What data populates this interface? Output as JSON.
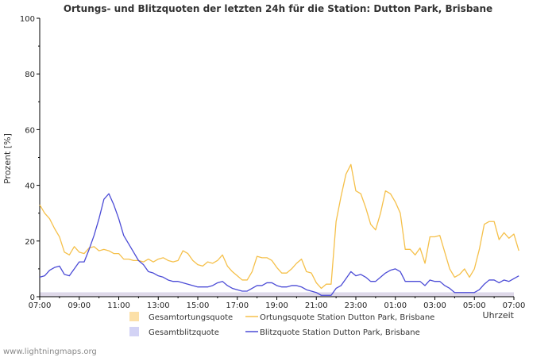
{
  "chart_data": {
    "type": "line",
    "title": "Ortungs- und Blitzquoten der letzten 24h für die Station: Dutton Park, Brisbane",
    "xlabel": "Uhrzeit",
    "ylabel": "Prozent   [%]",
    "ylim": [
      0,
      100
    ],
    "y_ticks": [
      0,
      20,
      40,
      60,
      80,
      100
    ],
    "x_ticks": [
      "07:00",
      "09:00",
      "11:00",
      "13:00",
      "15:00",
      "17:00",
      "19:00",
      "21:00",
      "23:00",
      "01:00",
      "03:00",
      "05:00",
      "07:00"
    ],
    "x_range_hours": [
      0,
      24
    ],
    "step_hours": 0.25,
    "series": [
      {
        "name": "Gesamtortungsquote",
        "kind": "area",
        "color": "#fce0a8",
        "values": [
          1.5,
          1.5,
          1.5,
          1.5,
          1.5,
          1.5,
          1.5,
          1.5,
          1.5,
          1.5,
          1.5,
          1.5,
          1.5,
          1.5,
          1.5,
          1.5,
          1.5,
          1.5,
          1.5,
          1.5,
          1.5,
          1.5,
          1.5,
          1.5,
          1.5,
          1.5,
          1.5,
          1.5,
          1.5,
          1.5,
          1.5,
          1.5,
          1.5,
          1.5,
          1.5,
          1.5,
          1.5,
          1.5,
          1.5,
          1.5,
          1.5,
          1.5,
          1.5,
          1.5,
          1.5,
          1.5,
          1.5,
          1.5,
          1.5,
          1.5,
          1.5,
          1.5,
          1.5,
          1.5,
          1.5,
          1.5,
          1.5,
          1.5,
          1.5,
          1.5,
          1.5,
          1.5,
          1.5,
          1.5,
          1.5,
          1.5,
          1.5,
          1.5,
          1.5,
          1.5,
          1.5,
          1.5,
          1.5,
          1.5,
          1.5,
          1.5,
          1.5,
          1.5,
          1.5,
          1.5,
          1.5,
          1.5,
          1.5,
          1.5,
          1.5,
          1.5,
          1.5,
          1.5,
          1.5,
          1.5,
          1.5,
          1.5,
          1.5,
          1.5,
          1.5,
          1.5,
          1.5
        ]
      },
      {
        "name": "Gesamtblitzquote",
        "kind": "area",
        "color": "#d3d3f5",
        "values": [
          1.6,
          1.6,
          1.6,
          1.6,
          1.6,
          1.6,
          1.6,
          1.6,
          1.6,
          1.6,
          1.6,
          1.6,
          1.6,
          1.6,
          1.6,
          1.6,
          1.6,
          1.6,
          1.6,
          1.6,
          1.6,
          1.6,
          1.6,
          1.6,
          1.6,
          1.6,
          1.6,
          1.6,
          1.6,
          1.6,
          1.6,
          1.6,
          1.6,
          1.6,
          1.6,
          1.6,
          1.6,
          1.6,
          1.6,
          1.6,
          1.6,
          1.6,
          1.6,
          1.6,
          1.6,
          1.6,
          1.6,
          1.6,
          1.6,
          1.6,
          1.6,
          1.6,
          1.6,
          1.6,
          1.6,
          1.6,
          1.6,
          1.6,
          1.6,
          1.6,
          1.6,
          1.6,
          1.6,
          1.6,
          1.6,
          1.6,
          1.6,
          1.6,
          1.6,
          1.6,
          1.6,
          1.6,
          1.6,
          1.6,
          1.6,
          1.6,
          1.6,
          1.6,
          1.6,
          1.6,
          1.6,
          1.6,
          1.6,
          1.6,
          1.6,
          1.6,
          1.6,
          1.6,
          1.6,
          1.6,
          1.6,
          1.6,
          1.6,
          1.6,
          1.6,
          1.6,
          1.6
        ]
      },
      {
        "name": "Ortungsquote Station Dutton Park, Brisbane",
        "kind": "line",
        "color": "#f5c04a",
        "values": [
          33,
          30,
          28,
          24.5,
          21.5,
          16,
          15,
          18,
          16,
          15.5,
          17.5,
          18,
          16.5,
          17,
          16.5,
          15.5,
          15.5,
          13.5,
          13.5,
          13,
          13,
          12.5,
          13.5,
          12.5,
          13.5,
          14,
          13,
          12.5,
          13,
          16.5,
          15.5,
          13,
          11.5,
          11,
          12.5,
          12,
          13,
          15,
          11,
          9,
          7.5,
          6,
          6,
          9,
          14.5,
          14,
          14,
          13,
          10.5,
          8.5,
          8.5,
          10,
          12,
          13.5,
          9,
          8.5,
          5,
          3,
          4.5,
          4.5,
          27,
          36,
          44,
          47.5,
          38,
          37,
          32,
          26,
          24,
          30,
          38,
          37,
          34,
          30,
          17,
          17,
          15,
          17.5,
          12,
          21.5,
          21.5,
          22,
          16,
          10,
          7,
          8,
          10,
          7,
          10,
          17,
          26,
          27,
          27,
          20.5,
          23,
          21,
          22.5,
          16.5
        ]
      },
      {
        "name": "Blitzquote Station Dutton Park, Brisbane",
        "kind": "line",
        "color": "#4b4bd6",
        "values": [
          7,
          7.5,
          9.5,
          10.5,
          11,
          8,
          7.5,
          10,
          12.5,
          12.5,
          17,
          22,
          28,
          35,
          37,
          33,
          28,
          22,
          19,
          16,
          13,
          11.5,
          9,
          8.5,
          7.5,
          7,
          6,
          5.5,
          5.5,
          5,
          4.5,
          4,
          3.5,
          3.5,
          3.5,
          4,
          5,
          5.5,
          4,
          3,
          2.5,
          2,
          2,
          3,
          4,
          4,
          5,
          5,
          4,
          3.5,
          3.5,
          4,
          4,
          3.5,
          2.5,
          2,
          1.5,
          0.5,
          0.5,
          0.5,
          3,
          4,
          6.5,
          9,
          7.5,
          8,
          7,
          5.5,
          5.5,
          7,
          8.5,
          9.5,
          10,
          9,
          5.5,
          5.5,
          5.5,
          5.5,
          4,
          6,
          5.5,
          5.5,
          4,
          3,
          1.5,
          1.5,
          1.5,
          1.5,
          1.5,
          2.5,
          4.5,
          6,
          6,
          5,
          6,
          5.5,
          6.5,
          7.5
        ]
      }
    ],
    "legend": {
      "placement": "bottom",
      "items": [
        "Gesamtortungsquote",
        "Ortungsquote Station Dutton Park, Brisbane",
        "Gesamtblitzquote",
        "Blitzquote Station Dutton Park, Brisbane"
      ]
    }
  },
  "footer": "www.lightningmaps.org"
}
